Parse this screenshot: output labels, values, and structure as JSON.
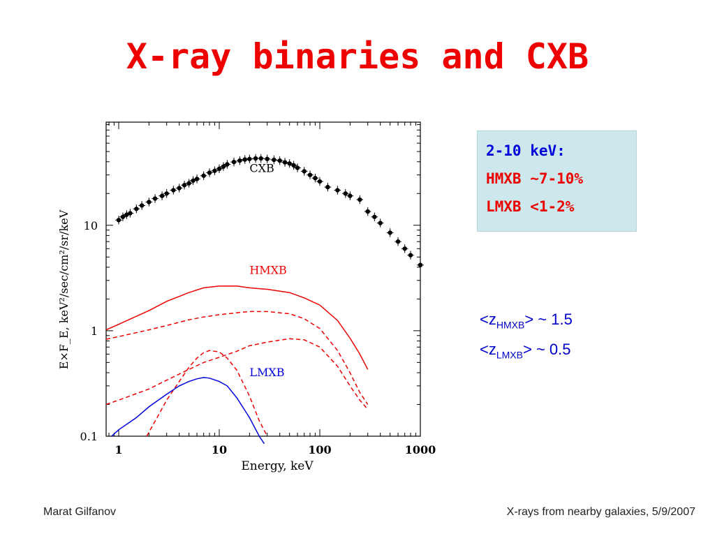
{
  "slide": {
    "title": "X-ray binaries and CXB",
    "footer_left": "Marat Gilfanov",
    "footer_right": "X-rays from nearby galaxies, 5/9/2007"
  },
  "infobox": {
    "line1": "2-10 keV:",
    "line2": "HMXB ~7-10%",
    "line3": "LMXB  <1-2%"
  },
  "redshift": [
    {
      "open": "<z",
      "sub": "HMXB",
      "rest": "> ~ 1.5"
    },
    {
      "open": "<z",
      "sub": "LMXB",
      "rest": "> ~ 0.5"
    }
  ],
  "chart_data": {
    "type": "line",
    "xlabel": "Energy, keV",
    "ylabel": "E×F_E, keV²/sec/cm²/sr/keV",
    "xscale": "log",
    "yscale": "log",
    "xlim": [
      0.75,
      1000
    ],
    "ylim": [
      0.1,
      95
    ],
    "x_ticks": [
      {
        "v": 1,
        "label": "1"
      },
      {
        "v": 10,
        "label": "10"
      },
      {
        "v": 100,
        "label": "100"
      },
      {
        "v": 1000,
        "label": "1000"
      }
    ],
    "y_ticks": [
      {
        "v": 0.1,
        "label": "0.1"
      },
      {
        "v": 1,
        "label": "1"
      },
      {
        "v": 10,
        "label": "10"
      }
    ],
    "series": [
      {
        "name": "CXB",
        "style": "points",
        "color": "#000000",
        "label_pos": [
          20,
          32
        ],
        "x": [
          1.0,
          1.1,
          1.2,
          1.3,
          1.5,
          1.7,
          2.0,
          2.3,
          2.7,
          3.0,
          3.5,
          4.0,
          4.5,
          5.0,
          5.5,
          6.0,
          7.0,
          8.0,
          9.0,
          10,
          11,
          12,
          14,
          16,
          18,
          20,
          23,
          26,
          30,
          35,
          40,
          45,
          50,
          55,
          60,
          70,
          80,
          90,
          100,
          120,
          150,
          180,
          200,
          250,
          300,
          350,
          400,
          500,
          600,
          700,
          800,
          1000
        ],
        "y": [
          11.2,
          12.0,
          12.6,
          13.0,
          14.3,
          15.4,
          16.6,
          17.9,
          19.0,
          20.0,
          21.5,
          22.5,
          24.0,
          25.0,
          26.5,
          27.5,
          29.5,
          31.5,
          32.8,
          34.3,
          36.0,
          37.8,
          39.8,
          41.0,
          42.0,
          42.5,
          43.0,
          43.0,
          42.5,
          41.7,
          41.0,
          39.5,
          38.5,
          37.0,
          35.0,
          32.5,
          30.0,
          28.0,
          26.0,
          23.0,
          21.5,
          20.0,
          19.0,
          17.5,
          13.5,
          12.0,
          10.5,
          8.5,
          7.0,
          6.0,
          5.2,
          4.2
        ]
      },
      {
        "name": "HMXB",
        "style": "solid",
        "color": "#ee0000",
        "label_pos": [
          20,
          3.45
        ],
        "x": [
          0.75,
          1,
          1.5,
          2,
          3,
          5,
          7,
          10,
          15,
          20,
          30,
          50,
          70,
          100,
          150,
          200,
          250,
          300
        ],
        "y": [
          1.02,
          1.15,
          1.37,
          1.55,
          1.9,
          2.3,
          2.55,
          2.65,
          2.65,
          2.55,
          2.47,
          2.3,
          2.05,
          1.75,
          1.25,
          0.85,
          0.6,
          0.43
        ]
      },
      {
        "name": "",
        "style": "dashed",
        "color": "#ee0000",
        "x": [
          0.75,
          1,
          2,
          3,
          5,
          7,
          10,
          15,
          20,
          30,
          50,
          70,
          100,
          150,
          200,
          250,
          300
        ],
        "y": [
          0.83,
          0.88,
          1.02,
          1.12,
          1.27,
          1.35,
          1.42,
          1.48,
          1.52,
          1.52,
          1.45,
          1.3,
          1.05,
          0.65,
          0.4,
          0.26,
          0.2
        ]
      },
      {
        "name": "",
        "style": "dashed",
        "color": "#ee0000",
        "x": [
          0.75,
          1,
          2,
          3,
          5,
          7,
          10,
          15,
          20,
          30,
          50,
          70,
          100,
          150,
          200,
          250,
          300
        ],
        "y": [
          0.2,
          0.22,
          0.28,
          0.34,
          0.43,
          0.5,
          0.56,
          0.64,
          0.72,
          0.78,
          0.84,
          0.82,
          0.7,
          0.46,
          0.3,
          0.22,
          0.18
        ]
      },
      {
        "name": "",
        "style": "dashed",
        "color": "#ee0000",
        "x": [
          1.9,
          2.5,
          3,
          4,
          5,
          6,
          7,
          8,
          10,
          12,
          15,
          20,
          25,
          30
        ],
        "y": [
          0.1,
          0.16,
          0.22,
          0.33,
          0.45,
          0.55,
          0.62,
          0.65,
          0.63,
          0.55,
          0.42,
          0.24,
          0.14,
          0.1
        ]
      },
      {
        "name": "LMXB",
        "style": "solid",
        "color": "#0000dd",
        "label_pos": [
          20,
          0.37
        ],
        "x": [
          0.85,
          1,
          1.5,
          2,
          3,
          4,
          5,
          6,
          7,
          8,
          10,
          12,
          15,
          20,
          25,
          28
        ],
        "y": [
          0.1,
          0.115,
          0.15,
          0.19,
          0.25,
          0.3,
          0.33,
          0.35,
          0.36,
          0.355,
          0.33,
          0.3,
          0.23,
          0.15,
          0.1,
          0.085
        ]
      }
    ]
  }
}
